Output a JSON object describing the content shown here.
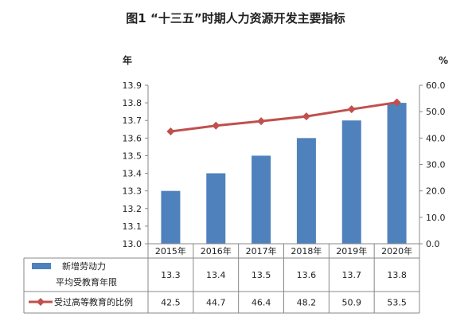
{
  "chart_data": {
    "type": "bar+line",
    "title": "图1 “十三五”时期人力资源开发主要指标",
    "left_unit": "年",
    "right_unit": "%",
    "categories": [
      "2015年",
      "2016年",
      "2017年",
      "2018年",
      "2019年",
      "2020年"
    ],
    "ylim_left": [
      13.0,
      13.9
    ],
    "ylim_right": [
      0.0,
      60.0
    ],
    "left_ticks": [
      "13.0",
      "13.1",
      "13.2",
      "13.3",
      "13.4",
      "13.5",
      "13.6",
      "13.7",
      "13.8",
      "13.9"
    ],
    "right_ticks": [
      "0.0",
      "10.0",
      "20.0",
      "30.0",
      "40.0",
      "50.0",
      "60.0"
    ],
    "series": [
      {
        "name_line1": "新增劳动力",
        "name_line2": "平均受教育年限",
        "kind": "bar",
        "axis": "left",
        "color": "#4f81bd",
        "values": [
          13.3,
          13.4,
          13.5,
          13.6,
          13.7,
          13.8
        ],
        "labels": [
          "13.3",
          "13.4",
          "13.5",
          "13.6",
          "13.7",
          "13.8"
        ]
      },
      {
        "name": "受过高等教育的比例",
        "kind": "line",
        "axis": "right",
        "color": "#c0504d",
        "values": [
          42.5,
          44.7,
          46.4,
          48.2,
          50.9,
          53.5
        ],
        "labels": [
          "42.5",
          "44.7",
          "46.4",
          "48.2",
          "50.9",
          "53.5"
        ]
      }
    ],
    "grid": false,
    "legend_placement": "data-table-left"
  }
}
